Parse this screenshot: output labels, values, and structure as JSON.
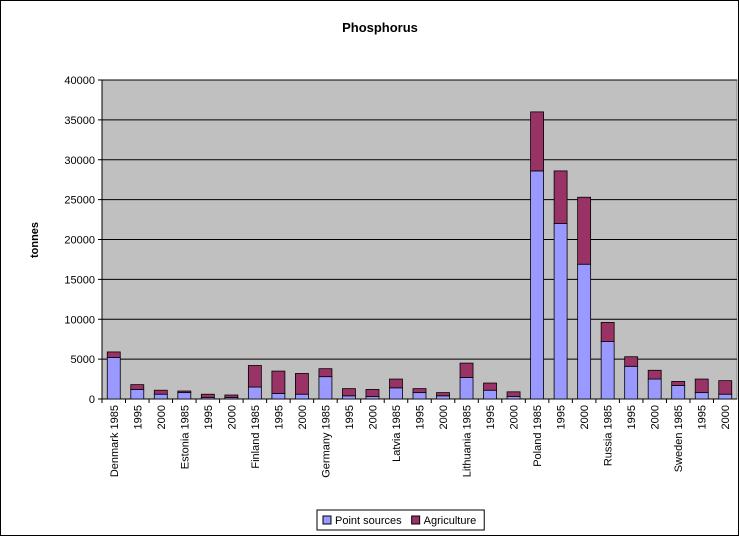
{
  "chart_data": {
    "type": "stacked_bar",
    "title": "Phosphorus",
    "y_label": "tonnes",
    "categories": [
      "Denmark 1985",
      "1995",
      "2000",
      "Estonia 1985",
      "1995",
      "2000",
      "Finland 1985",
      "1995",
      "2000",
      "Germany 1985",
      "1995",
      "2000",
      "Latvia 1985",
      "1995",
      "2000",
      "Lithuania 1985",
      "1995",
      "2000",
      "Poland 1985",
      "1995",
      "2000",
      "Russia 1985",
      "1995",
      "2000",
      "Sweden 1985",
      "1995",
      "2000"
    ],
    "series": [
      {
        "name": "Point sources",
        "color": "#9999ff",
        "values": [
          5200,
          1200,
          600,
          800,
          200,
          200,
          1500,
          700,
          600,
          2800,
          400,
          300,
          1400,
          800,
          400,
          2700,
          1100,
          300,
          28600,
          22000,
          16900,
          7200,
          4100,
          2500,
          1700,
          800,
          600
        ]
      },
      {
        "name": "Agriculture",
        "color": "#993366",
        "values": [
          700,
          600,
          500,
          200,
          400,
          300,
          2700,
          2800,
          2600,
          1000,
          900,
          900,
          1100,
          500,
          400,
          1800,
          900,
          600,
          7400,
          6600,
          8400,
          2400,
          1200,
          1100,
          500,
          1700,
          1700
        ]
      }
    ],
    "ylim": [
      0,
      40000
    ],
    "yticks": [
      0,
      5000,
      10000,
      15000,
      20000,
      25000,
      30000,
      35000,
      40000
    ],
    "grid": true,
    "legend": "bottom",
    "plot_background": "#c0c0c0"
  }
}
